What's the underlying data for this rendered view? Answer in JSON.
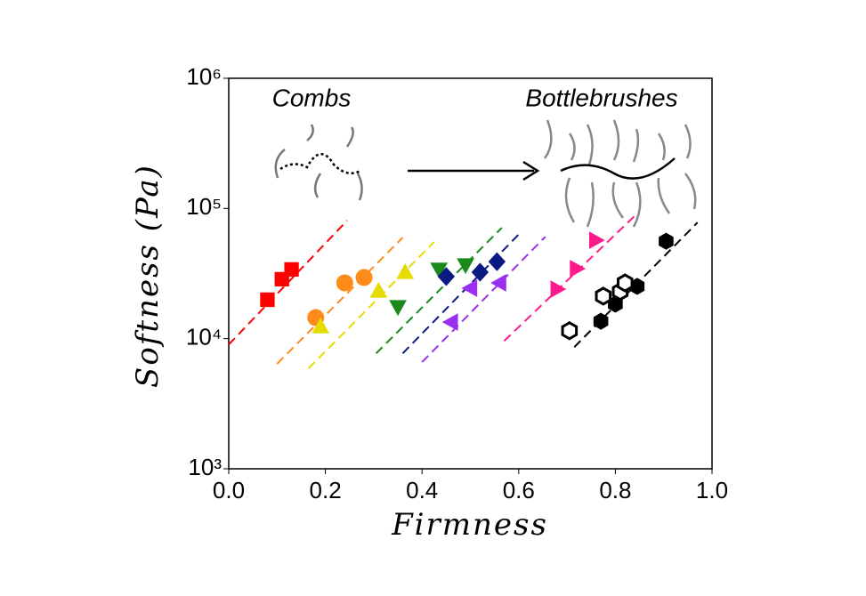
{
  "chart_data": {
    "type": "scatter",
    "xlabel": "Firmness",
    "ylabel": "Softness (Pa)",
    "annotations": [
      "Combs",
      "Bottlebrushes"
    ],
    "xlim": [
      0,
      1
    ],
    "ylim": [
      1000,
      1000000
    ],
    "log_y": true,
    "grid": false,
    "xticks": [
      {
        "value": 0,
        "label": "0.0"
      },
      0.2,
      0.4,
      0.6,
      0.8,
      {
        "value": 1,
        "label": "1.0"
      }
    ],
    "yticks": [
      {
        "value": 1000,
        "label": "10³"
      },
      {
        "value": 10000,
        "label": "10⁴"
      },
      {
        "value": 100000,
        "label": "10⁵"
      },
      {
        "value": 1000000,
        "label": "10⁶"
      }
    ],
    "series": [
      {
        "color": "#ff0000",
        "marker": "square",
        "filled": true,
        "x": [
          0.08,
          0.11,
          0.13
        ],
        "values": [
          19900,
          28600,
          34000
        ],
        "fit_x": [
          0.0,
          0.245
        ],
        "fit_y": [
          9000,
          80700
        ]
      },
      {
        "color": "#ff8c1a",
        "marker": "circle",
        "filled": true,
        "x": [
          0.18,
          0.24,
          0.28
        ],
        "values": [
          14500,
          26800,
          29500
        ],
        "fit_x": [
          0.1,
          0.36
        ],
        "fit_y": [
          6400,
          59800
        ]
      },
      {
        "color": "#e6dc00",
        "marker": "triangle-up",
        "filled": true,
        "x": [
          0.19,
          0.31,
          0.365
        ],
        "values": [
          12400,
          23300,
          32400
        ],
        "fit_x": [
          0.165,
          0.425
        ],
        "fit_y": [
          5900,
          55300
        ]
      },
      {
        "color": "#1b8a1b",
        "marker": "triangle-down",
        "filled": true,
        "x": [
          0.35,
          0.435,
          0.49
        ],
        "values": [
          17500,
          34000,
          36700
        ],
        "fit_x": [
          0.305,
          0.565
        ],
        "fit_y": [
          7700,
          71000
        ]
      },
      {
        "color": "#0a1a80",
        "marker": "diamond",
        "filled": true,
        "x": [
          0.45,
          0.52,
          0.555
        ],
        "values": [
          30000,
          32400,
          39000
        ],
        "fit_x": [
          0.36,
          0.605
        ],
        "fit_y": [
          7700,
          66000
        ]
      },
      {
        "color": "#9a2ff0",
        "marker": "triangle-left",
        "filled": true,
        "x": [
          0.46,
          0.5,
          0.56
        ],
        "values": [
          13400,
          24400,
          26800
        ],
        "fit_x": [
          0.4,
          0.655
        ],
        "fit_y": [
          6600,
          60600
        ]
      },
      {
        "color": "#ff1a8c",
        "marker": "triangle-right",
        "filled": true,
        "x": [
          0.68,
          0.72,
          0.76
        ],
        "values": [
          24000,
          34500,
          57000
        ],
        "fit_x": [
          0.57,
          0.84
        ],
        "fit_y": [
          9600,
          87600
        ]
      },
      {
        "color": "#000000",
        "marker": "hexagon",
        "filled": true,
        "x": [
          0.77,
          0.8,
          0.845,
          0.905
        ],
        "values": [
          13600,
          18400,
          25200,
          56000
        ],
        "fit_x": [
          0.715,
          0.97
        ],
        "fit_y": [
          8600,
          78000
        ]
      },
      {
        "color": "#000000",
        "marker": "hexagon",
        "filled": false,
        "x": [
          0.705,
          0.775,
          0.81,
          0.82
        ],
        "values": [
          11500,
          21200,
          23000,
          26800
        ]
      }
    ]
  }
}
